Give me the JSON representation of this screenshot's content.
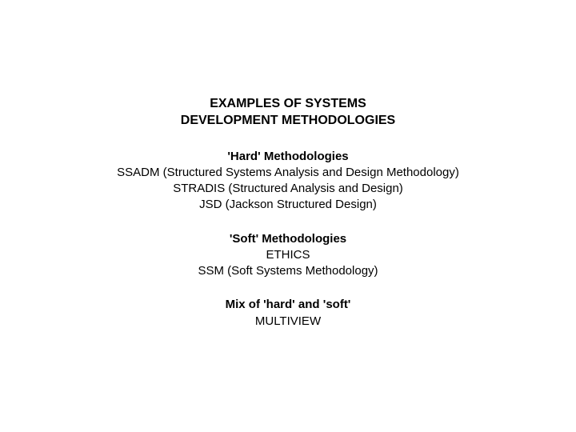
{
  "background_color": "#ffffff",
  "text_color": "#000000",
  "title_fontsize": 16,
  "body_fontsize": 15,
  "title": {
    "line1": "EXAMPLES OF SYSTEMS",
    "line2": "DEVELOPMENT METHODOLOGIES"
  },
  "sections": [
    {
      "heading": "'Hard' Methodologies",
      "items": [
        "SSADM (Structured Systems Analysis and Design Methodology)",
        "STRADIS (Structured Analysis and Design)",
        "JSD (Jackson Structured Design)"
      ]
    },
    {
      "heading": "'Soft' Methodologies",
      "items": [
        "ETHICS",
        "SSM (Soft Systems Methodology)"
      ]
    },
    {
      "heading": "Mix of 'hard' and 'soft'",
      "items": [
        "MULTIVIEW"
      ]
    }
  ]
}
